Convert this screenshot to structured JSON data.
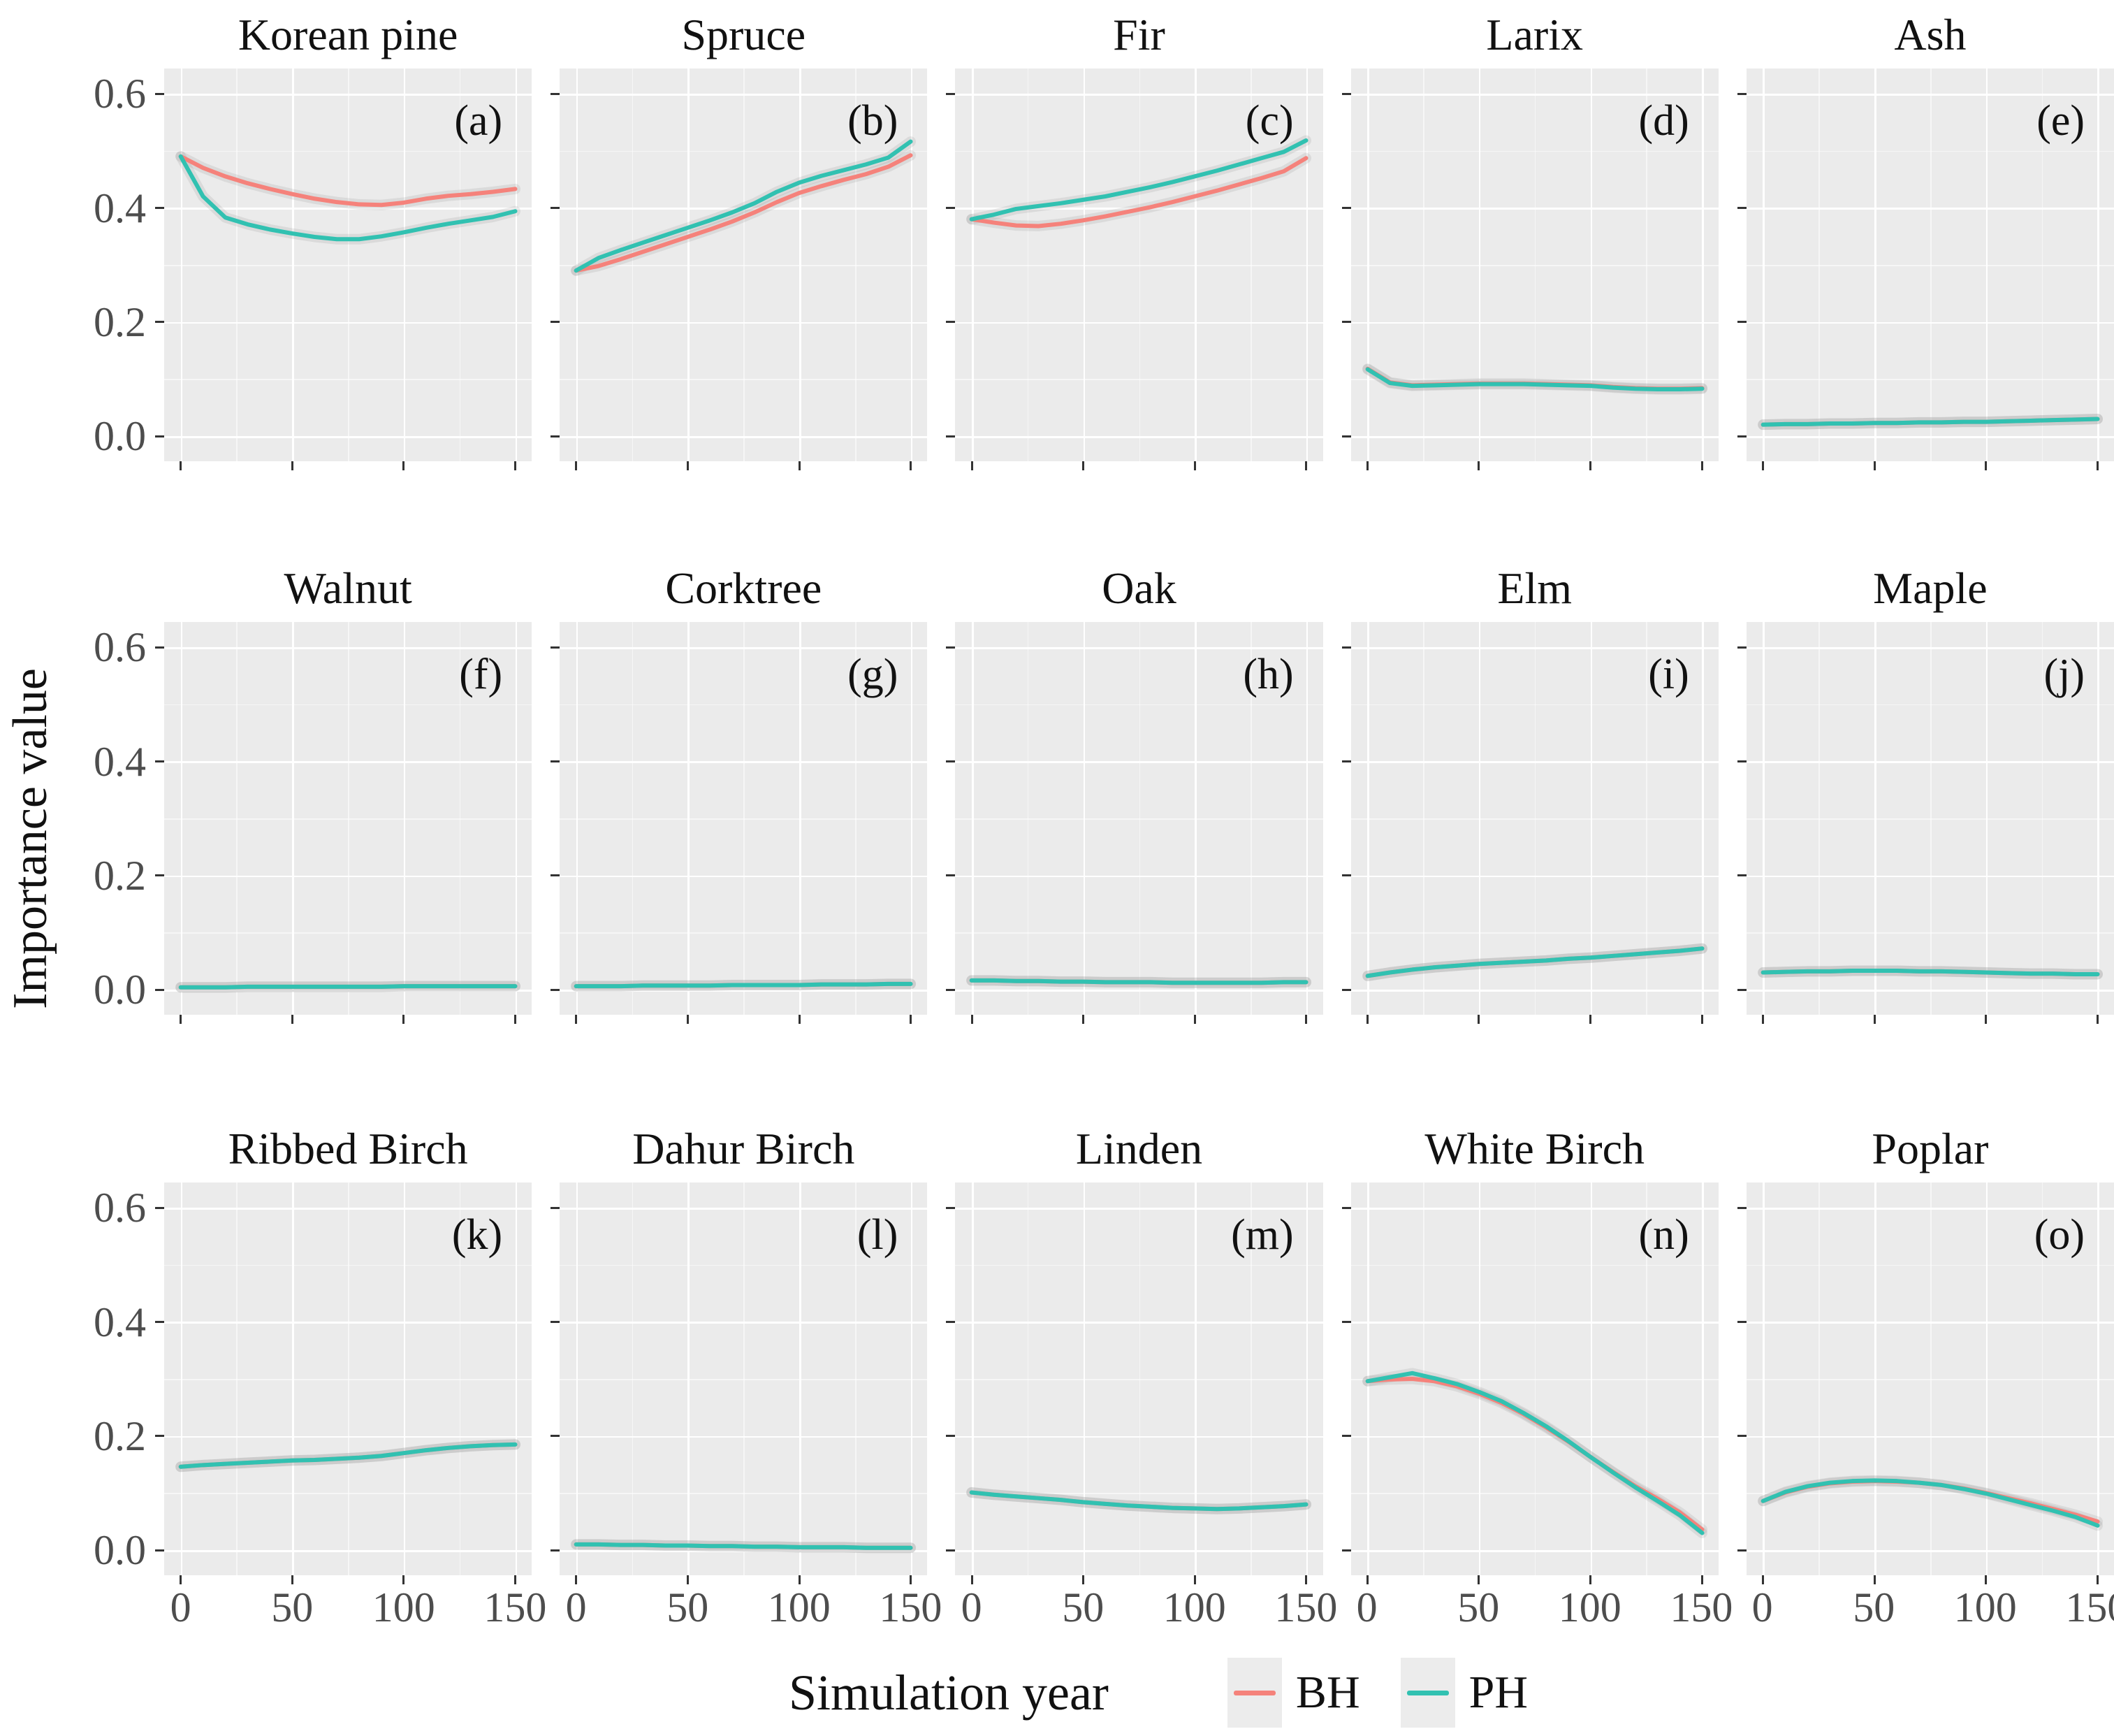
{
  "figure": {
    "y_axis_label": "Importance value",
    "x_axis_label": "Simulation year",
    "y_ticks": [
      "0.6",
      "0.4",
      "0.2",
      "0.0"
    ],
    "x_ticks": [
      "0",
      "50",
      "100",
      "150"
    ],
    "colors": {
      "BH": "#F5827B",
      "PH": "#31C1B1",
      "panel_bg": "#EBEBEB",
      "grid": "#FFFFFF",
      "tick": "#333333",
      "ribbon": "rgba(130,130,130,0.16)"
    },
    "legend": [
      {
        "label": "BH",
        "series": "BH"
      },
      {
        "label": "PH",
        "series": "PH"
      }
    ]
  },
  "chart_data": {
    "type": "line",
    "xlabel": "Simulation year",
    "ylabel": "Importance value",
    "x_range": [
      0,
      150
    ],
    "y_range": [
      0.0,
      0.6
    ],
    "grid": "on",
    "legend_position": "bottom",
    "x": [
      0,
      10,
      20,
      30,
      40,
      50,
      60,
      70,
      80,
      90,
      100,
      110,
      120,
      130,
      140,
      150
    ],
    "y_breaks_major": [
      0.0,
      0.2,
      0.4,
      0.6
    ],
    "y_breaks_minor": [
      0.1,
      0.3,
      0.5
    ],
    "x_breaks_major": [
      0,
      50,
      100,
      150
    ],
    "x_breaks_minor": [
      25,
      75,
      125
    ],
    "panels": [
      {
        "title": "Korean pine",
        "letter": "(a)",
        "BH": [
          0.49,
          0.47,
          0.455,
          0.443,
          0.433,
          0.424,
          0.416,
          0.41,
          0.406,
          0.405,
          0.409,
          0.416,
          0.421,
          0.424,
          0.428,
          0.433
        ],
        "PH": [
          0.49,
          0.42,
          0.383,
          0.371,
          0.362,
          0.355,
          0.349,
          0.345,
          0.345,
          0.35,
          0.357,
          0.365,
          0.372,
          0.378,
          0.384,
          0.394
        ]
      },
      {
        "title": "Spruce",
        "letter": "(b)",
        "BH": [
          0.29,
          0.298,
          0.31,
          0.323,
          0.336,
          0.349,
          0.362,
          0.376,
          0.392,
          0.41,
          0.426,
          0.438,
          0.449,
          0.459,
          0.472,
          0.492
        ],
        "PH": [
          0.29,
          0.312,
          0.326,
          0.339,
          0.352,
          0.365,
          0.378,
          0.392,
          0.408,
          0.428,
          0.444,
          0.456,
          0.466,
          0.476,
          0.488,
          0.516
        ]
      },
      {
        "title": "Fir",
        "letter": "(c)",
        "BH": [
          0.38,
          0.374,
          0.369,
          0.368,
          0.372,
          0.378,
          0.385,
          0.393,
          0.401,
          0.41,
          0.42,
          0.43,
          0.441,
          0.452,
          0.464,
          0.487
        ],
        "PH": [
          0.38,
          0.388,
          0.398,
          0.403,
          0.408,
          0.414,
          0.42,
          0.428,
          0.436,
          0.445,
          0.455,
          0.465,
          0.476,
          0.487,
          0.498,
          0.518
        ]
      },
      {
        "title": "Larix",
        "letter": "(d)",
        "BH": [
          0.118,
          0.094,
          0.089,
          0.09,
          0.091,
          0.092,
          0.092,
          0.092,
          0.091,
          0.09,
          0.089,
          0.086,
          0.084,
          0.083,
          0.083,
          0.084
        ],
        "PH": [
          0.117,
          0.093,
          0.088,
          0.089,
          0.09,
          0.091,
          0.091,
          0.091,
          0.09,
          0.089,
          0.088,
          0.085,
          0.083,
          0.082,
          0.082,
          0.083
        ]
      },
      {
        "title": "Ash",
        "letter": "(e)",
        "BH": [
          0.02,
          0.021,
          0.021,
          0.022,
          0.022,
          0.023,
          0.023,
          0.024,
          0.024,
          0.025,
          0.025,
          0.026,
          0.027,
          0.028,
          0.029,
          0.03
        ],
        "PH": [
          0.02,
          0.021,
          0.021,
          0.022,
          0.022,
          0.023,
          0.023,
          0.024,
          0.024,
          0.025,
          0.025,
          0.026,
          0.027,
          0.028,
          0.029,
          0.03
        ]
      },
      {
        "title": "Walnut",
        "letter": "(f)",
        "BH": [
          0.004,
          0.004,
          0.004,
          0.005,
          0.005,
          0.005,
          0.005,
          0.005,
          0.005,
          0.005,
          0.006,
          0.006,
          0.006,
          0.006,
          0.006,
          0.006
        ],
        "PH": [
          0.004,
          0.004,
          0.004,
          0.005,
          0.005,
          0.005,
          0.005,
          0.005,
          0.005,
          0.005,
          0.006,
          0.006,
          0.006,
          0.006,
          0.006,
          0.006
        ]
      },
      {
        "title": "Corktree",
        "letter": "(g)",
        "BH": [
          0.006,
          0.006,
          0.006,
          0.007,
          0.007,
          0.007,
          0.007,
          0.008,
          0.008,
          0.008,
          0.008,
          0.009,
          0.009,
          0.009,
          0.01,
          0.01
        ],
        "PH": [
          0.006,
          0.006,
          0.006,
          0.007,
          0.007,
          0.007,
          0.007,
          0.008,
          0.008,
          0.008,
          0.008,
          0.009,
          0.009,
          0.009,
          0.01,
          0.01
        ]
      },
      {
        "title": "Oak",
        "letter": "(h)",
        "BH": [
          0.016,
          0.016,
          0.015,
          0.015,
          0.014,
          0.014,
          0.013,
          0.013,
          0.013,
          0.012,
          0.012,
          0.012,
          0.012,
          0.012,
          0.013,
          0.013
        ],
        "PH": [
          0.016,
          0.016,
          0.015,
          0.015,
          0.014,
          0.014,
          0.013,
          0.013,
          0.013,
          0.012,
          0.012,
          0.012,
          0.012,
          0.012,
          0.013,
          0.013
        ]
      },
      {
        "title": "Elm",
        "letter": "(i)",
        "BH": [
          0.024,
          0.03,
          0.035,
          0.039,
          0.042,
          0.045,
          0.047,
          0.049,
          0.051,
          0.054,
          0.056,
          0.059,
          0.062,
          0.065,
          0.068,
          0.072
        ],
        "PH": [
          0.024,
          0.03,
          0.035,
          0.039,
          0.042,
          0.045,
          0.047,
          0.049,
          0.051,
          0.054,
          0.056,
          0.059,
          0.062,
          0.065,
          0.068,
          0.072
        ]
      },
      {
        "title": "Maple",
        "letter": "(j)",
        "BH": [
          0.03,
          0.031,
          0.032,
          0.032,
          0.033,
          0.033,
          0.033,
          0.032,
          0.032,
          0.031,
          0.03,
          0.029,
          0.028,
          0.028,
          0.027,
          0.027
        ],
        "PH": [
          0.03,
          0.031,
          0.032,
          0.032,
          0.033,
          0.033,
          0.033,
          0.032,
          0.032,
          0.031,
          0.03,
          0.029,
          0.028,
          0.028,
          0.027,
          0.027
        ]
      },
      {
        "title": "Ribbed Birch",
        "letter": "(k)",
        "BH": [
          0.146,
          0.149,
          0.151,
          0.153,
          0.155,
          0.157,
          0.158,
          0.16,
          0.162,
          0.165,
          0.17,
          0.175,
          0.179,
          0.182,
          0.184,
          0.185
        ],
        "PH": [
          0.146,
          0.149,
          0.151,
          0.153,
          0.155,
          0.157,
          0.158,
          0.16,
          0.162,
          0.165,
          0.17,
          0.175,
          0.179,
          0.182,
          0.184,
          0.185
        ]
      },
      {
        "title": "Dahur Birch",
        "letter": "(l)",
        "BH": [
          0.01,
          0.01,
          0.009,
          0.009,
          0.008,
          0.008,
          0.007,
          0.007,
          0.006,
          0.006,
          0.005,
          0.005,
          0.005,
          0.004,
          0.004,
          0.004
        ],
        "PH": [
          0.01,
          0.01,
          0.009,
          0.009,
          0.008,
          0.008,
          0.007,
          0.007,
          0.006,
          0.006,
          0.005,
          0.005,
          0.005,
          0.004,
          0.004,
          0.004
        ]
      },
      {
        "title": "Linden",
        "letter": "(m)",
        "BH": [
          0.101,
          0.097,
          0.094,
          0.091,
          0.088,
          0.084,
          0.081,
          0.078,
          0.076,
          0.074,
          0.073,
          0.072,
          0.073,
          0.075,
          0.077,
          0.08
        ],
        "PH": [
          0.101,
          0.097,
          0.094,
          0.091,
          0.088,
          0.084,
          0.081,
          0.078,
          0.076,
          0.074,
          0.073,
          0.072,
          0.073,
          0.075,
          0.077,
          0.08
        ]
      },
      {
        "title": "White Birch",
        "letter": "(n)",
        "BH": [
          0.296,
          0.299,
          0.3,
          0.296,
          0.287,
          0.274,
          0.258,
          0.238,
          0.215,
          0.19,
          0.163,
          0.137,
          0.112,
          0.09,
          0.066,
          0.036
        ],
        "PH": [
          0.296,
          0.303,
          0.31,
          0.301,
          0.291,
          0.277,
          0.261,
          0.24,
          0.217,
          0.191,
          0.163,
          0.136,
          0.11,
          0.086,
          0.061,
          0.03
        ]
      },
      {
        "title": "Poplar",
        "letter": "(o)",
        "BH": [
          0.086,
          0.101,
          0.111,
          0.117,
          0.12,
          0.121,
          0.12,
          0.118,
          0.114,
          0.108,
          0.1,
          0.091,
          0.082,
          0.072,
          0.062,
          0.05
        ],
        "PH": [
          0.086,
          0.102,
          0.112,
          0.118,
          0.121,
          0.122,
          0.121,
          0.118,
          0.114,
          0.107,
          0.099,
          0.089,
          0.079,
          0.069,
          0.058,
          0.043
        ]
      }
    ]
  }
}
